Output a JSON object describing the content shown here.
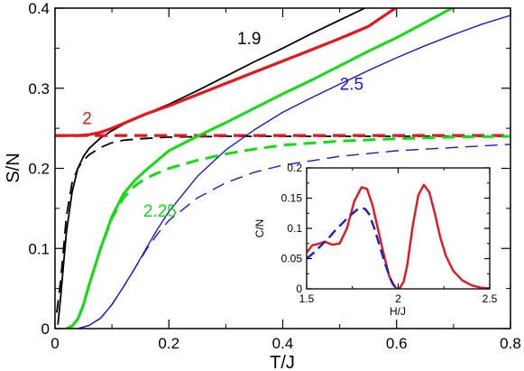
{
  "chart_data": [
    {
      "type": "line",
      "xlabel": "T/J",
      "ylabel": "S/N",
      "xlim": [
        0,
        0.8
      ],
      "ylim": [
        0,
        0.4
      ],
      "xticks": [
        0,
        0.2,
        0.4,
        0.6,
        0.8
      ],
      "xtick_labels": [
        "0",
        "0.2",
        "0.4",
        "0.6",
        "0.8"
      ],
      "yticks": [
        0,
        0.1,
        0.2,
        0.3,
        0.4
      ],
      "ytick_labels": [
        "0",
        "0.1",
        "0.2",
        "0.3",
        "0.4"
      ],
      "grid": false,
      "series": [
        {
          "label": "1.9",
          "color": "#000000",
          "dash": false,
          "width": 1.8,
          "x": [
            0.005,
            0.01,
            0.02,
            0.03,
            0.04,
            0.05,
            0.06,
            0.08,
            0.1,
            0.12,
            0.14,
            0.16,
            0.2,
            0.25,
            0.3,
            0.35,
            0.4,
            0.45,
            0.5,
            0.55
          ],
          "y": [
            0.005,
            0.04,
            0.12,
            0.17,
            0.2,
            0.215,
            0.225,
            0.238,
            0.247,
            0.255,
            0.262,
            0.268,
            0.28,
            0.297,
            0.315,
            0.333,
            0.35,
            0.368,
            0.385,
            0.402
          ]
        },
        {
          "label": "",
          "color": "#000000",
          "dash": true,
          "width": 1.8,
          "x": [
            0.003,
            0.01,
            0.02,
            0.03,
            0.04,
            0.05,
            0.06,
            0.08,
            0.1,
            0.12,
            0.15,
            0.2,
            0.3,
            0.4,
            0.5,
            0.6,
            0.7,
            0.8
          ],
          "y": [
            0.02,
            0.06,
            0.14,
            0.182,
            0.2,
            0.21,
            0.217,
            0.226,
            0.232,
            0.235,
            0.237,
            0.239,
            0.24,
            0.24,
            0.24,
            0.24,
            0.24,
            0.24
          ]
        },
        {
          "label": "2",
          "color": "#e8141e",
          "dash": false,
          "width": 3.2,
          "x": [
            0,
            0.04,
            0.06,
            0.08,
            0.1,
            0.12,
            0.14,
            0.16,
            0.2,
            0.25,
            0.3,
            0.35,
            0.4,
            0.45,
            0.5,
            0.55,
            0.6
          ],
          "y": [
            0.241,
            0.241,
            0.242,
            0.245,
            0.25,
            0.256,
            0.262,
            0.268,
            0.278,
            0.292,
            0.306,
            0.32,
            0.334,
            0.348,
            0.362,
            0.377,
            0.401
          ]
        },
        {
          "label": "",
          "color": "#e8141e",
          "dash": true,
          "width": 3.2,
          "x": [
            0,
            0.8
          ],
          "y": [
            0.241,
            0.241
          ]
        },
        {
          "label": "2.25",
          "color": "#14dc14",
          "dash": false,
          "width": 3.0,
          "x": [
            0.02,
            0.03,
            0.04,
            0.05,
            0.06,
            0.08,
            0.1,
            0.12,
            0.14,
            0.16,
            0.2,
            0.25,
            0.3,
            0.35,
            0.4,
            0.45,
            0.5,
            0.55,
            0.6,
            0.65,
            0.7
          ],
          "y": [
            0.0,
            0.003,
            0.012,
            0.03,
            0.055,
            0.1,
            0.14,
            0.168,
            0.185,
            0.198,
            0.222,
            0.24,
            0.257,
            0.275,
            0.293,
            0.31,
            0.328,
            0.346,
            0.363,
            0.382,
            0.401
          ]
        },
        {
          "label": "",
          "color": "#14dc14",
          "dash": true,
          "width": 3.0,
          "x": [
            0.02,
            0.03,
            0.04,
            0.05,
            0.06,
            0.08,
            0.1,
            0.12,
            0.14,
            0.16,
            0.2,
            0.25,
            0.3,
            0.35,
            0.4,
            0.5,
            0.6,
            0.7,
            0.8
          ],
          "y": [
            0.0,
            0.003,
            0.012,
            0.03,
            0.055,
            0.1,
            0.138,
            0.163,
            0.178,
            0.188,
            0.2,
            0.21,
            0.218,
            0.224,
            0.229,
            0.234,
            0.237,
            0.239,
            0.24
          ]
        },
        {
          "label": "2.5",
          "color": "#1a1ad6",
          "dash": false,
          "width": 1.4,
          "x": [
            0.04,
            0.06,
            0.08,
            0.1,
            0.12,
            0.14,
            0.16,
            0.18,
            0.2,
            0.25,
            0.3,
            0.35,
            0.4,
            0.45,
            0.5,
            0.55,
            0.6,
            0.65,
            0.7,
            0.75,
            0.8
          ],
          "y": [
            0.0,
            0.004,
            0.013,
            0.03,
            0.052,
            0.075,
            0.1,
            0.124,
            0.146,
            0.19,
            0.223,
            0.248,
            0.27,
            0.288,
            0.305,
            0.322,
            0.338,
            0.353,
            0.367,
            0.38,
            0.391
          ]
        },
        {
          "label": "",
          "color": "#1a1ad6",
          "dash": true,
          "width": 1.4,
          "x": [
            0.04,
            0.06,
            0.08,
            0.1,
            0.12,
            0.14,
            0.16,
            0.18,
            0.2,
            0.25,
            0.3,
            0.35,
            0.4,
            0.5,
            0.6,
            0.7,
            0.8
          ],
          "y": [
            0.0,
            0.004,
            0.013,
            0.03,
            0.052,
            0.075,
            0.098,
            0.118,
            0.135,
            0.163,
            0.182,
            0.195,
            0.204,
            0.215,
            0.222,
            0.226,
            0.23
          ]
        }
      ],
      "labels": [
        {
          "text": "1.9",
          "color": "#000000",
          "x": 0.32,
          "y": 0.355
        },
        {
          "text": "2",
          "color": "#e8141e",
          "x": 0.048,
          "y": 0.255
        },
        {
          "text": "2.25",
          "color": "#14dc14",
          "x": 0.155,
          "y": 0.14
        },
        {
          "text": "2.5",
          "color": "#1a1ad6",
          "x": 0.5,
          "y": 0.298
        }
      ]
    },
    {
      "type": "line",
      "xlabel": "H/J",
      "ylabel": "C/N",
      "xlim": [
        1.5,
        2.5
      ],
      "ylim": [
        0,
        0.2
      ],
      "xticks": [
        1.5,
        2,
        2.5
      ],
      "xtick_labels": [
        "1.5",
        "2",
        "2.5"
      ],
      "yticks": [
        0,
        0.05,
        0.1,
        0.15,
        0.2
      ],
      "ytick_labels": [
        "0",
        "0.05",
        "0.1",
        "0.15",
        "0.2"
      ],
      "grid": false,
      "series": [
        {
          "label": "",
          "color": "#e8141e",
          "dash": false,
          "width": 2.4,
          "x": [
            1.5,
            1.53,
            1.56,
            1.6,
            1.64,
            1.68,
            1.72,
            1.76,
            1.8,
            1.83,
            1.86,
            1.89,
            1.92,
            1.95,
            1.97,
            1.99,
            2.0,
            2.01,
            2.03,
            2.05,
            2.08,
            2.11,
            2.14,
            2.17,
            2.2,
            2.23,
            2.26,
            2.3,
            2.35,
            2.4,
            2.45,
            2.5
          ],
          "y": [
            0.06,
            0.072,
            0.074,
            0.078,
            0.073,
            0.075,
            0.1,
            0.145,
            0.168,
            0.165,
            0.138,
            0.098,
            0.058,
            0.022,
            0.008,
            0.001,
            0.0,
            0.002,
            0.012,
            0.04,
            0.105,
            0.155,
            0.172,
            0.16,
            0.125,
            0.085,
            0.055,
            0.03,
            0.014,
            0.006,
            0.002,
            0.001
          ]
        },
        {
          "label": "",
          "color": "#1a1ad6",
          "dash": true,
          "width": 2.4,
          "x": [
            1.5,
            1.54,
            1.58,
            1.62,
            1.66,
            1.7,
            1.74,
            1.78,
            1.8,
            1.82,
            1.84,
            1.87,
            1.9,
            1.93,
            1.96,
            1.98,
            2.0
          ],
          "y": [
            0.05,
            0.06,
            0.072,
            0.084,
            0.098,
            0.11,
            0.122,
            0.132,
            0.134,
            0.132,
            0.124,
            0.1,
            0.07,
            0.04,
            0.015,
            0.004,
            0.0
          ]
        }
      ]
    }
  ]
}
